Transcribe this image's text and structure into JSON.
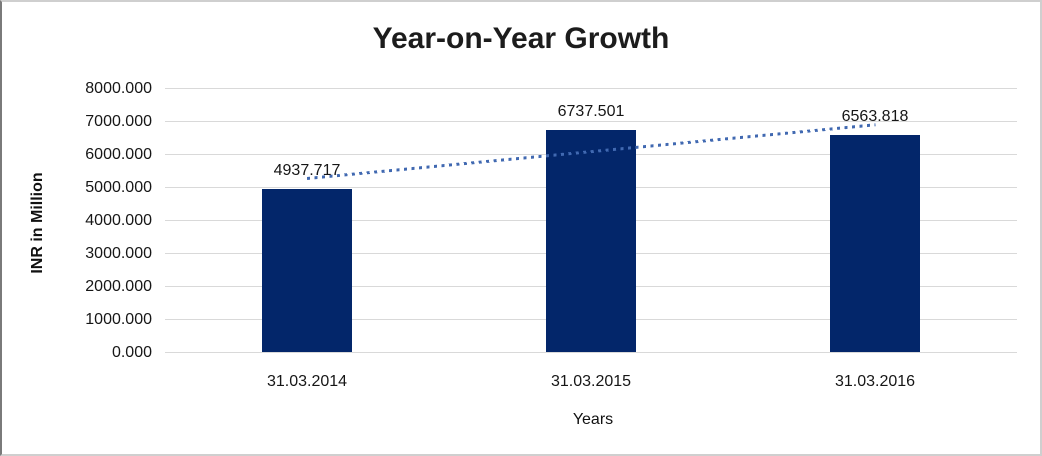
{
  "chart": {
    "title": "Year-on-Year Growth",
    "y_axis_title": "INR in Million",
    "x_axis_title": "Years"
  },
  "chart_data": {
    "type": "bar",
    "title": "Year-on-Year Growth",
    "xlabel": "Years",
    "ylabel": "INR in Million",
    "categories": [
      "31.03.2014",
      "31.03.2015",
      "31.03.2016"
    ],
    "values": [
      4937.717,
      6737.501,
      6563.818
    ],
    "data_labels": [
      "4937.717",
      "6737.501",
      "6563.818"
    ],
    "ylim": [
      0,
      8000
    ],
    "ytick_step": 1000,
    "ytick_labels": [
      "0.000",
      "1000.000",
      "2000.000",
      "3000.000",
      "4000.000",
      "5000.000",
      "6000.000",
      "7000.000",
      "8000.000"
    ],
    "grid": true,
    "legend": false,
    "trendline": {
      "type": "linear",
      "style": "dotted"
    },
    "colors": {
      "bar": "#03266a",
      "trendline": "#4169b1",
      "gridline": "#d9d9d9",
      "text": "#161616"
    }
  }
}
